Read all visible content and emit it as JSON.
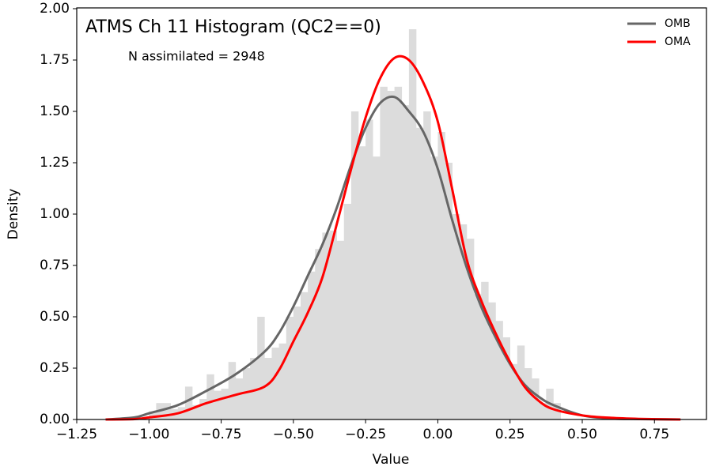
{
  "chart_data": {
    "type": "histogram",
    "title": "ATMS Ch 11 Histogram (QC2==0)",
    "annotation": "N assimilated = 2948",
    "xlabel": "Value",
    "ylabel": "Density",
    "color": "#dcdcdc",
    "bins": [
      -1.0,
      -0.975,
      -0.95,
      -0.925,
      -0.9,
      -0.875,
      -0.85,
      -0.825,
      -0.8,
      -0.775,
      -0.75,
      -0.725,
      -0.7,
      -0.675,
      -0.65,
      -0.625,
      -0.6,
      -0.575,
      -0.55,
      -0.525,
      -0.5,
      -0.475,
      -0.45,
      -0.425,
      -0.4,
      -0.375,
      -0.35,
      -0.325,
      -0.3,
      -0.275,
      -0.25,
      -0.225,
      -0.2,
      -0.175,
      -0.15,
      -0.125,
      -0.1,
      -0.075,
      -0.05,
      -0.025,
      0.0,
      0.025,
      0.05,
      0.075,
      0.1,
      0.125,
      0.15,
      0.175,
      0.2,
      0.225,
      0.25,
      0.275,
      0.3,
      0.325,
      0.35,
      0.375,
      0.4,
      0.425
    ],
    "counts": [
      0.04,
      0.08,
      0.08,
      0.05,
      0.06,
      0.16,
      0.07,
      0.1,
      0.22,
      0.14,
      0.15,
      0.28,
      0.2,
      0.25,
      0.3,
      0.5,
      0.3,
      0.35,
      0.37,
      0.5,
      0.55,
      0.62,
      0.72,
      0.83,
      0.91,
      0.92,
      0.87,
      1.05,
      1.5,
      1.33,
      1.46,
      1.28,
      1.62,
      1.6,
      1.62,
      1.53,
      1.9,
      1.42,
      1.5,
      1.28,
      1.4,
      1.25,
      1.0,
      0.95,
      0.88,
      0.61,
      0.67,
      0.57,
      0.48,
      0.4,
      0.27,
      0.36,
      0.25,
      0.2,
      0.08,
      0.15,
      0.08
    ],
    "series": [
      {
        "name": "OMB",
        "color": "#666666",
        "x": [
          -1.15,
          -1.05,
          -1.0,
          -0.9,
          -0.8,
          -0.7,
          -0.6,
          -0.55,
          -0.5,
          -0.45,
          -0.4,
          -0.35,
          -0.3,
          -0.25,
          -0.2,
          -0.15,
          -0.1,
          -0.05,
          0.0,
          0.05,
          0.1,
          0.15,
          0.2,
          0.25,
          0.3,
          0.35,
          0.4,
          0.5,
          0.6,
          0.7,
          0.84
        ],
        "values": [
          0,
          0.01,
          0.03,
          0.07,
          0.14,
          0.22,
          0.33,
          0.42,
          0.55,
          0.7,
          0.85,
          1.03,
          1.24,
          1.42,
          1.54,
          1.57,
          1.5,
          1.4,
          1.22,
          0.97,
          0.74,
          0.55,
          0.4,
          0.27,
          0.17,
          0.11,
          0.07,
          0.02,
          0.005,
          0.002,
          0
        ]
      },
      {
        "name": "OMA",
        "color": "#ff0000",
        "x": [
          -1.15,
          -1.05,
          -1.0,
          -0.9,
          -0.8,
          -0.7,
          -0.6,
          -0.55,
          -0.5,
          -0.45,
          -0.4,
          -0.35,
          -0.3,
          -0.25,
          -0.2,
          -0.15,
          -0.1,
          -0.05,
          0.0,
          0.05,
          0.1,
          0.15,
          0.2,
          0.25,
          0.3,
          0.35,
          0.4,
          0.5,
          0.6,
          0.7,
          0.84
        ],
        "values": [
          0,
          0.002,
          0.01,
          0.03,
          0.08,
          0.12,
          0.16,
          0.24,
          0.38,
          0.52,
          0.69,
          0.95,
          1.22,
          1.47,
          1.66,
          1.76,
          1.75,
          1.64,
          1.45,
          1.12,
          0.78,
          0.58,
          0.42,
          0.28,
          0.16,
          0.09,
          0.05,
          0.02,
          0.008,
          0.003,
          0
        ]
      }
    ],
    "xlim": [
      -1.25,
      0.93
    ],
    "ylim": [
      0,
      2.0
    ],
    "xticks": [
      {
        "value": -1.25,
        "label": "−1.25"
      },
      {
        "value": -1.0,
        "label": "−1.00"
      },
      {
        "value": -0.75,
        "label": "−0.75"
      },
      {
        "value": -0.5,
        "label": "−0.50"
      },
      {
        "value": -0.25,
        "label": "−0.25"
      },
      {
        "value": 0,
        "label": "0.00"
      },
      {
        "value": 0.25,
        "label": "0.25"
      },
      {
        "value": 0.5,
        "label": "0.50"
      },
      {
        "value": 0.75,
        "label": "0.75"
      }
    ],
    "yticks": [
      {
        "value": 0,
        "label": "0.00"
      },
      {
        "value": 0.25,
        "label": "0.25"
      },
      {
        "value": 0.5,
        "label": "0.50"
      },
      {
        "value": 0.75,
        "label": "0.75"
      },
      {
        "value": 1.0,
        "label": "1.00"
      },
      {
        "value": 1.25,
        "label": "1.25"
      },
      {
        "value": 1.5,
        "label": "1.50"
      },
      {
        "value": 1.75,
        "label": "1.75"
      },
      {
        "value": 2.0,
        "label": "2.00"
      }
    ],
    "legend": "upper right"
  }
}
